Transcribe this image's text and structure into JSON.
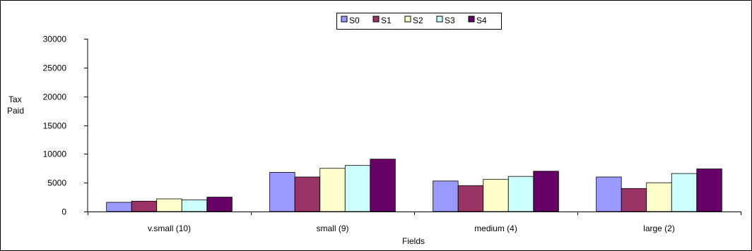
{
  "chart_data": {
    "type": "bar",
    "title": "",
    "xlabel": "Fields",
    "ylabel_lines": [
      "Tax",
      "Paid"
    ],
    "ylim": [
      0,
      30000
    ],
    "yticks": [
      0,
      5000,
      10000,
      15000,
      20000,
      25000,
      30000
    ],
    "categories": [
      "v.small (10)",
      "small (9)",
      "medium (4)",
      "large (2)"
    ],
    "series": [
      {
        "name": "S0",
        "color": "#9999FF",
        "values": [
          1600,
          6800,
          5300,
          6000
        ]
      },
      {
        "name": "S1",
        "color": "#993366",
        "values": [
          1800,
          6000,
          4500,
          4000
        ]
      },
      {
        "name": "S2",
        "color": "#FFFFCC",
        "values": [
          2200,
          7500,
          5600,
          5000
        ]
      },
      {
        "name": "S3",
        "color": "#CCFFFF",
        "values": [
          2000,
          8000,
          6100,
          6600
        ]
      },
      {
        "name": "S4",
        "color": "#660066",
        "values": [
          2500,
          9100,
          7000,
          7400
        ]
      }
    ],
    "grid": false,
    "legend_position": "top-center"
  }
}
